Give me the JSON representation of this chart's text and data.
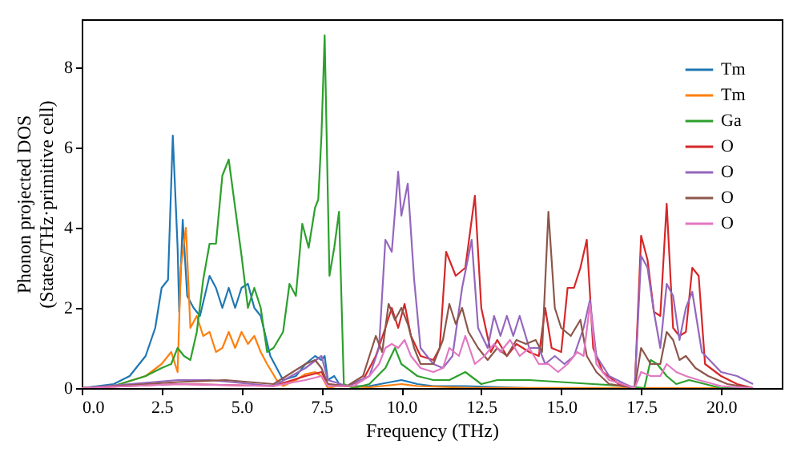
{
  "chart_data": {
    "type": "line",
    "xlabel": "Frequency (THz)",
    "ylabel": "Phonon projected DOS\n(States/THz·primitive cell)",
    "xlim": [
      0,
      21.9
    ],
    "ylim": [
      0,
      9.2
    ],
    "xticks": [
      {
        "value": 0,
        "label": "0.0"
      },
      {
        "value": 2.5,
        "label": "2.5"
      },
      {
        "value": 5,
        "label": "5.0"
      },
      {
        "value": 7.5,
        "label": "7.5"
      },
      {
        "value": 10,
        "label": "10.0"
      },
      {
        "value": 12.5,
        "label": "12.5"
      },
      {
        "value": 15,
        "label": "15.0"
      },
      {
        "value": 17.5,
        "label": "17.5"
      },
      {
        "value": 20,
        "label": "20.0"
      }
    ],
    "yticks": [
      0,
      2,
      4,
      6,
      8
    ],
    "grid": false,
    "legend": "top right",
    "line_style": "solid",
    "marker": "none",
    "series": [
      {
        "name": "Tm",
        "color": "#1f77b4",
        "x": [
          0,
          1,
          1.5,
          2,
          2.3,
          2.5,
          2.7,
          2.85,
          3.0,
          3.05,
          3.16,
          3.3,
          3.5,
          3.7,
          4.0,
          4.2,
          4.4,
          4.6,
          4.8,
          5.0,
          5.2,
          5.4,
          5.6,
          5.9,
          6.3,
          6.7,
          7.0,
          7.3,
          7.5,
          7.6,
          7.7,
          7.9,
          8.1,
          9,
          10,
          10.5,
          11,
          12,
          14
        ],
        "values": [
          0,
          0.1,
          0.3,
          0.8,
          1.5,
          2.5,
          2.7,
          6.3,
          3.5,
          1.9,
          4.2,
          2.3,
          2.0,
          1.8,
          2.8,
          2.5,
          2.0,
          2.5,
          2.0,
          2.5,
          2.6,
          2.0,
          1.8,
          0.8,
          0.2,
          0.3,
          0.6,
          0.8,
          0.7,
          0.8,
          0.2,
          0.3,
          0.05,
          0.05,
          0.2,
          0.1,
          0.05,
          0.05,
          0
        ]
      },
      {
        "name": "Tm",
        "color": "#ff7f0e",
        "x": [
          0,
          1,
          2,
          2.5,
          2.8,
          3.0,
          3.1,
          3.26,
          3.4,
          3.6,
          3.8,
          4.0,
          4.2,
          4.4,
          4.6,
          4.8,
          5.0,
          5.2,
          5.4,
          5.6,
          5.8,
          6.1,
          6.3,
          6.7,
          7,
          7.3,
          7.5,
          7.7,
          8,
          9,
          10,
          10.5,
          12,
          21
        ],
        "values": [
          0,
          0.05,
          0.3,
          0.6,
          0.9,
          0.4,
          3.0,
          4.0,
          1.5,
          1.8,
          1.3,
          1.4,
          0.9,
          1.0,
          1.4,
          1.0,
          1.4,
          1.1,
          1.3,
          0.9,
          0.6,
          0.2,
          0.05,
          0.2,
          0.35,
          0.4,
          0.3,
          0,
          0.05,
          0.02,
          0.1,
          0.05,
          0.01,
          0
        ]
      },
      {
        "name": "Ga",
        "color": "#2ca02c",
        "x": [
          0,
          1,
          2,
          2.5,
          2.8,
          3.0,
          3.2,
          3.4,
          3.6,
          3.8,
          4.0,
          4.2,
          4.4,
          4.6,
          4.8,
          5.0,
          5.2,
          5.4,
          5.6,
          5.8,
          6.0,
          6.3,
          6.5,
          6.7,
          6.9,
          7.1,
          7.3,
          7.4,
          7.5,
          7.6,
          7.75,
          7.9,
          8.05,
          8.2,
          8.5,
          9.0,
          9.5,
          9.8,
          10.0,
          10.5,
          11,
          11.5,
          12,
          12.5,
          13,
          14,
          15,
          16,
          17,
          17.6,
          17.8,
          18.0,
          18.3,
          18.6,
          19,
          19.5,
          20,
          21
        ],
        "values": [
          0,
          0.05,
          0.3,
          0.5,
          0.6,
          1.0,
          0.8,
          0.7,
          1.4,
          2.7,
          3.6,
          3.6,
          5.3,
          5.7,
          4.5,
          3.3,
          2.0,
          2.5,
          2.0,
          0.9,
          1.0,
          1.4,
          2.6,
          2.3,
          4.1,
          3.5,
          4.5,
          4.7,
          6.3,
          8.8,
          2.8,
          3.5,
          4.4,
          0.1,
          0,
          0.1,
          0.5,
          1.0,
          0.6,
          0.3,
          0.2,
          0.2,
          0.4,
          0.1,
          0.2,
          0.2,
          0.15,
          0.1,
          0.05,
          0,
          0.7,
          0.6,
          0.3,
          0.1,
          0.2,
          0.1,
          0,
          0
        ]
      },
      {
        "name": "O",
        "color": "#d62728",
        "x": [
          0,
          3,
          6,
          7,
          7.5,
          7.7,
          8.3,
          8.8,
          9.2,
          9.5,
          9.7,
          9.9,
          10.1,
          10.3,
          10.6,
          11.0,
          11.2,
          11.4,
          11.7,
          12.0,
          12.3,
          12.5,
          12.8,
          13.0,
          13.3,
          13.6,
          14.0,
          14.3,
          14.5,
          14.7,
          15.0,
          15.2,
          15.4,
          15.6,
          15.8,
          16.0,
          16.3,
          16.8,
          17.3,
          17.5,
          17.7,
          17.9,
          18.1,
          18.3,
          18.5,
          18.7,
          18.9,
          19.1,
          19.3,
          19.5,
          20,
          20.5,
          21
        ],
        "values": [
          0,
          0.1,
          0.05,
          0.3,
          0.4,
          0.1,
          0.05,
          0.2,
          0.8,
          1.5,
          2.0,
          1.5,
          2.1,
          1.3,
          0.8,
          0.7,
          1.0,
          3.4,
          2.8,
          3.0,
          4.8,
          2.0,
          0.9,
          1.2,
          0.8,
          1.1,
          0.9,
          0.8,
          2.0,
          1.0,
          0.9,
          2.5,
          2.5,
          3.0,
          3.7,
          1.0,
          0.4,
          0.1,
          0,
          3.8,
          3.2,
          1.9,
          1.8,
          4.6,
          1.5,
          1.3,
          1.4,
          3.0,
          2.8,
          0.6,
          0.3,
          0.1,
          0
        ]
      },
      {
        "name": "O",
        "color": "#9467bd",
        "x": [
          0,
          3,
          4,
          6,
          7,
          7.5,
          7.7,
          8.3,
          9.0,
          9.3,
          9.5,
          9.7,
          9.9,
          10.0,
          10.2,
          10.4,
          10.6,
          10.8,
          11.0,
          11.3,
          11.6,
          11.9,
          12.2,
          12.4,
          12.7,
          12.9,
          13.1,
          13.3,
          13.5,
          13.7,
          14.0,
          14.3,
          14.5,
          14.8,
          15.1,
          15.4,
          15.7,
          15.9,
          16.1,
          16.5,
          17.0,
          17.3,
          17.5,
          17.7,
          17.9,
          18.1,
          18.3,
          18.5,
          18.7,
          18.9,
          19.1,
          19.4,
          20,
          20.5,
          21
        ],
        "values": [
          0,
          0.2,
          0.2,
          0.05,
          0.5,
          0.8,
          0.2,
          0.05,
          0.3,
          1.0,
          3.7,
          3.4,
          5.4,
          4.3,
          5.1,
          2.7,
          1.0,
          0.8,
          0.6,
          0.5,
          0.8,
          2.5,
          3.7,
          1.5,
          1.0,
          1.8,
          1.3,
          1.8,
          1.3,
          1.8,
          1.0,
          1.0,
          0.6,
          0.8,
          0.6,
          0.8,
          1.5,
          2.2,
          0.8,
          0.3,
          0.1,
          0,
          3.3,
          3.0,
          1.9,
          1.0,
          2.6,
          2.3,
          1.2,
          2.0,
          2.4,
          0.9,
          0.4,
          0.3,
          0.1
        ]
      },
      {
        "name": "O",
        "color": "#8c564b",
        "x": [
          0,
          3,
          4.5,
          6,
          7,
          7.3,
          7.5,
          7.7,
          8.3,
          8.8,
          9.2,
          9.4,
          9.6,
          9.8,
          10.0,
          10.2,
          10.4,
          10.6,
          11.0,
          11.3,
          11.5,
          11.7,
          11.9,
          12.1,
          12.4,
          12.7,
          13.0,
          13.3,
          13.6,
          13.9,
          14.2,
          14.4,
          14.6,
          14.8,
          15.0,
          15.3,
          15.6,
          15.8,
          16.1,
          16.5,
          17.3,
          17.5,
          17.8,
          18.1,
          18.3,
          18.5,
          18.7,
          18.9,
          19.2,
          19.6,
          20.2,
          21
        ],
        "values": [
          0,
          0.15,
          0.2,
          0.1,
          0.6,
          0.7,
          0.5,
          0.1,
          0.05,
          0.3,
          1.3,
          0.9,
          2.1,
          1.7,
          2.0,
          1.6,
          1.0,
          0.6,
          0.6,
          1.2,
          2.1,
          1.6,
          2.0,
          1.4,
          1.0,
          0.7,
          1.0,
          0.8,
          1.2,
          1.1,
          1.2,
          0.9,
          4.4,
          2.0,
          1.5,
          1.3,
          1.7,
          0.8,
          0.4,
          0.1,
          0,
          1.0,
          0.6,
          0.6,
          1.4,
          1.2,
          0.7,
          0.8,
          0.5,
          0.3,
          0.1,
          0
        ]
      },
      {
        "name": "O",
        "color": "#e377c2",
        "x": [
          0,
          3,
          6,
          7,
          7.5,
          7.7,
          8.5,
          9.0,
          9.3,
          9.5,
          9.7,
          9.9,
          10.1,
          10.3,
          10.6,
          11.0,
          11.3,
          11.5,
          11.8,
          12.0,
          12.3,
          12.6,
          12.9,
          13.1,
          13.4,
          13.7,
          14.0,
          14.3,
          14.6,
          14.9,
          15.2,
          15.5,
          15.7,
          15.9,
          16.1,
          16.5,
          17.3,
          17.5,
          17.8,
          18.1,
          18.3,
          18.6,
          18.9,
          19.3,
          20,
          21
        ],
        "values": [
          0,
          0.1,
          0.05,
          0.2,
          0.3,
          0.05,
          0.05,
          0.3,
          0.6,
          1.0,
          1.1,
          1.0,
          1.2,
          0.8,
          0.5,
          0.4,
          0.5,
          1.0,
          0.8,
          1.3,
          0.6,
          0.8,
          1.1,
          0.9,
          1.2,
          0.8,
          1.0,
          0.6,
          0.6,
          0.4,
          0.6,
          0.9,
          0.8,
          2.1,
          0.6,
          0.2,
          0,
          0.4,
          0.3,
          0.3,
          0.6,
          0.4,
          0.3,
          0.2,
          0.05,
          0
        ]
      }
    ]
  }
}
